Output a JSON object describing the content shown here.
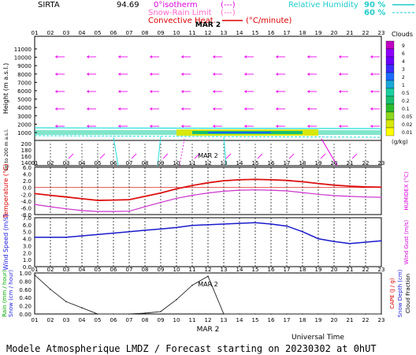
{
  "header": {
    "station": "SIRTA",
    "coord": "94.69",
    "legend_zero": "0°",
    "legend_isotherm": "isotherm",
    "legend_snow": "Snow-Rain Limit",
    "legend_conv": "Convective Heat.",
    "legend_dash": "(---)",
    "legend_units": "(°C/minute)",
    "rh_label": "Relative Humidity",
    "rh_1": "90 %",
    "rh_2": "60 %"
  },
  "hours": [
    "01",
    "02",
    "03",
    "04",
    "05",
    "06",
    "07",
    "08",
    "09",
    "10",
    "11",
    "12",
    "13",
    "14",
    "15",
    "16",
    "17",
    "18",
    "19",
    "20",
    "21",
    "22",
    "23"
  ],
  "date_label": "MAR 2",
  "footer": {
    "model": "Modele Atmospherique LMDZ / Forecast starting on 20230302 at 0hUT",
    "universal_time": "Universal Time"
  },
  "colors": {
    "temperature": "#dd1111",
    "humidex": "#cc33cc",
    "wind_speed": "#1a1acc",
    "rain": "#222222",
    "wind_arrows": "#ee22ee",
    "rh": "#22dddd",
    "label_magenta": "#dd00dd",
    "label_red": "#dd0000",
    "label_blue": "#2222dd",
    "label_green": "#00aa00"
  },
  "clouds_legend": {
    "title": "Clouds",
    "unit": "(g/kg)",
    "levels": [
      "9",
      "6",
      "4",
      "3",
      "2",
      "1",
      "0.5",
      "0.2",
      "0.1",
      "0.05",
      "0.02",
      "0.01"
    ],
    "colors": [
      "#c000c0",
      "#9000ff",
      "#6a00ff",
      "#3c2cff",
      "#1a6cff",
      "#1aa8d8",
      "#1ad0a0",
      "#18c070",
      "#2cbc2c",
      "#8cd81c",
      "#d8e80c",
      "#ffff00"
    ]
  },
  "panels": {
    "height": {
      "ylabel": "Height (m a.s.l.)",
      "ylabel2": "Up to 200 m a.s.l.",
      "ticks": [
        "11000",
        "10000",
        "9000",
        "8000",
        "7000",
        "6000",
        "5000",
        "4000",
        "3000",
        "2000",
        "1000"
      ],
      "low_ticks": [
        "200",
        "180",
        "160",
        "140"
      ]
    },
    "temperature": {
      "ylabel_left": "Temperature (°C)",
      "ylabel_right": "HUMIDEX (°C)",
      "ticks": [
        "6.0",
        "4.0",
        "2.0",
        "0.0",
        "-2.0",
        "-4.0",
        "-6.0",
        "-8.0"
      ]
    },
    "wind": {
      "ylabel_left": "Wind Speed (m/s)",
      "ylabel_right": "Wind Gust (m/s)",
      "ticks": [
        "7.0",
        "6.0",
        "5.0",
        "4.0",
        "3.0",
        "2.0",
        "1.0",
        "0.0"
      ]
    },
    "rain": {
      "ylabel_left_1": "Rain (mm / hour)",
      "ylabel_left_2": "Snow (cm / hour)",
      "ylabel_right_1": "CAPE (J / g)",
      "ylabel_right_2": "Snow Depth (cm)",
      "ylabel_right_3": "Cloud Fraction",
      "ticks": [
        "1.00",
        "0.80",
        "0.60",
        "0.40",
        "0.20",
        "0.00"
      ]
    }
  },
  "chart_data": [
    {
      "type": "line",
      "title": "Temperature / Humidex",
      "x": [
        "01",
        "02",
        "03",
        "04",
        "05",
        "06",
        "07",
        "08",
        "09",
        "10",
        "11",
        "12",
        "13",
        "14",
        "15",
        "16",
        "17",
        "18",
        "19",
        "20",
        "21",
        "22",
        "23"
      ],
      "ylim": [
        -8,
        6
      ],
      "series": [
        {
          "name": "Temperature",
          "values": [
            -1.8,
            -2.3,
            -2.8,
            -3.3,
            -3.8,
            -3.7,
            -3.6,
            -2.6,
            -1.6,
            -0.4,
            0.6,
            1.4,
            2.0,
            2.3,
            2.4,
            2.3,
            2.1,
            1.7,
            1.2,
            0.7,
            0.4,
            0.2,
            0.1
          ]
        },
        {
          "name": "HUMIDEX",
          "values": [
            -5.0,
            -5.7,
            -6.3,
            -6.8,
            -7.1,
            -7.1,
            -7.0,
            -5.7,
            -4.4,
            -3.2,
            -2.3,
            -1.6,
            -1.1,
            -0.8,
            -0.7,
            -0.8,
            -1.0,
            -1.5,
            -2.0,
            -2.4,
            -2.6,
            -2.8,
            -2.9
          ]
        }
      ]
    },
    {
      "type": "line",
      "title": "Wind Speed",
      "x": [
        "01",
        "02",
        "03",
        "04",
        "05",
        "06",
        "07",
        "08",
        "09",
        "10",
        "11",
        "12",
        "13",
        "14",
        "15",
        "16",
        "17",
        "18",
        "19",
        "20",
        "21",
        "22",
        "23"
      ],
      "ylim": [
        0,
        7
      ],
      "series": [
        {
          "name": "Wind Speed",
          "values": [
            4.2,
            4.2,
            4.2,
            4.4,
            4.6,
            4.8,
            5.0,
            5.2,
            5.4,
            5.6,
            5.9,
            6.0,
            6.1,
            6.2,
            6.3,
            6.1,
            5.8,
            5.0,
            4.0,
            3.6,
            3.3,
            3.5,
            3.7
          ]
        }
      ]
    },
    {
      "type": "line",
      "title": "Rain",
      "x": [
        "01",
        "02",
        "03",
        "04",
        "05",
        "06",
        "07",
        "08",
        "09",
        "10",
        "11",
        "12",
        "13",
        "14",
        "15",
        "16",
        "17",
        "18",
        "19",
        "20",
        "21",
        "22",
        "23"
      ],
      "ylim": [
        0,
        1
      ],
      "series": [
        {
          "name": "Rain",
          "values": [
            0.95,
            0.6,
            0.3,
            0.15,
            0.0,
            0.0,
            0.0,
            0.02,
            0.06,
            0.35,
            0.7,
            0.92,
            0.0,
            0.0,
            0.0,
            0.0,
            0.0,
            0.0,
            0.0,
            0.0,
            0.0,
            0.0,
            0.0
          ]
        }
      ]
    }
  ]
}
